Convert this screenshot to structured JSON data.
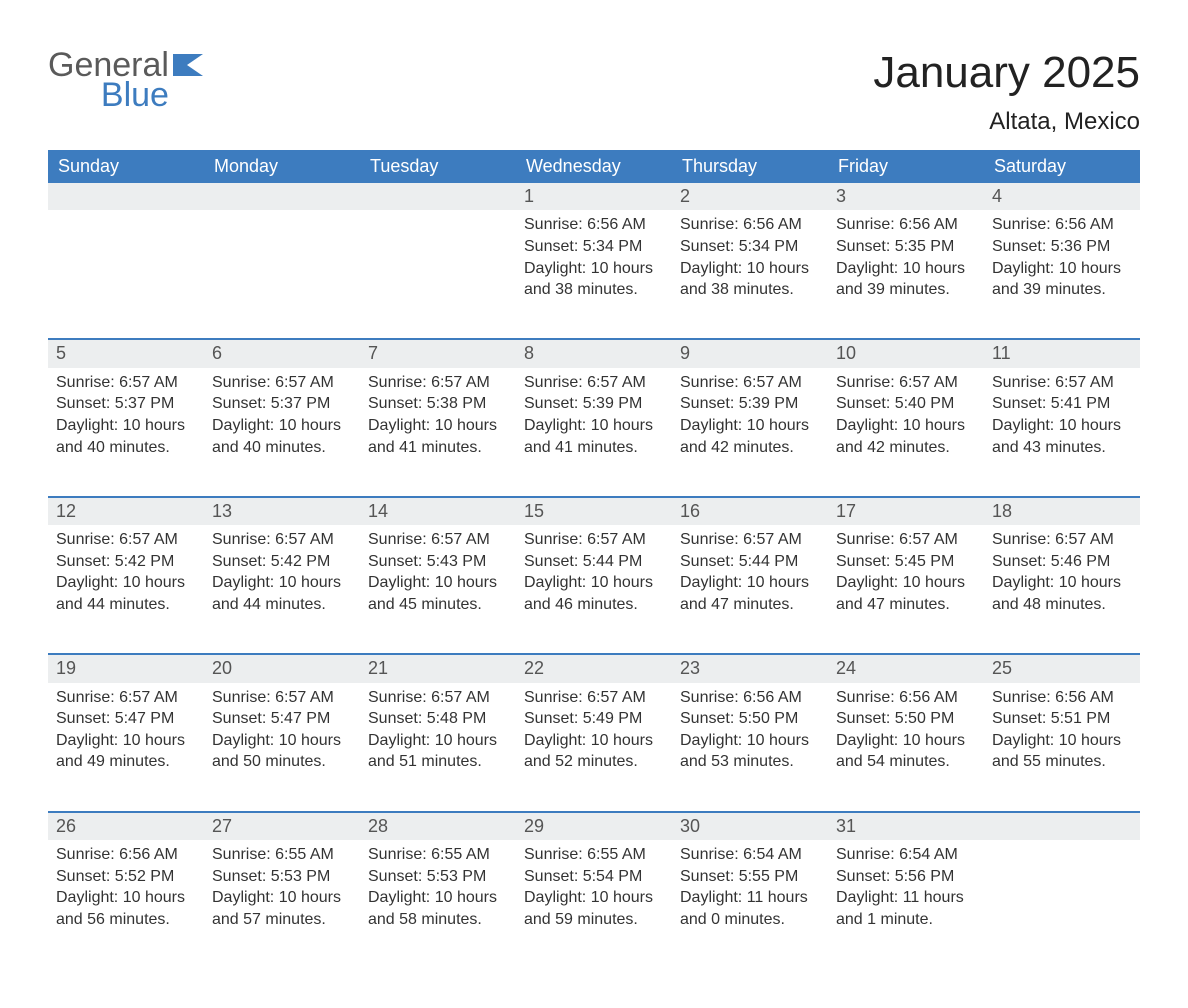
{
  "brand": {
    "word1": "General",
    "word2": "Blue"
  },
  "title": "January 2025",
  "location": "Altata, Mexico",
  "columns": [
    "Sunday",
    "Monday",
    "Tuesday",
    "Wednesday",
    "Thursday",
    "Friday",
    "Saturday"
  ],
  "colors": {
    "header_bg": "#3d7cbf",
    "header_text": "#ffffff",
    "rule": "#3d7cbf",
    "row_alt": "#eceeef",
    "text": "#333333",
    "logo_gray": "#5a5a5a",
    "logo_blue": "#3d7cbf",
    "background": "#ffffff"
  },
  "typography": {
    "title_fontsize": 44,
    "location_fontsize": 24,
    "header_fontsize": 18,
    "daynum_fontsize": 18,
    "body_fontsize": 16,
    "font_family": "Arial"
  },
  "weeks": [
    [
      null,
      null,
      null,
      {
        "n": "1",
        "sunrise": "Sunrise: 6:56 AM",
        "sunset": "Sunset: 5:34 PM",
        "dl1": "Daylight: 10 hours",
        "dl2": "and 38 minutes."
      },
      {
        "n": "2",
        "sunrise": "Sunrise: 6:56 AM",
        "sunset": "Sunset: 5:34 PM",
        "dl1": "Daylight: 10 hours",
        "dl2": "and 38 minutes."
      },
      {
        "n": "3",
        "sunrise": "Sunrise: 6:56 AM",
        "sunset": "Sunset: 5:35 PM",
        "dl1": "Daylight: 10 hours",
        "dl2": "and 39 minutes."
      },
      {
        "n": "4",
        "sunrise": "Sunrise: 6:56 AM",
        "sunset": "Sunset: 5:36 PM",
        "dl1": "Daylight: 10 hours",
        "dl2": "and 39 minutes."
      }
    ],
    [
      {
        "n": "5",
        "sunrise": "Sunrise: 6:57 AM",
        "sunset": "Sunset: 5:37 PM",
        "dl1": "Daylight: 10 hours",
        "dl2": "and 40 minutes."
      },
      {
        "n": "6",
        "sunrise": "Sunrise: 6:57 AM",
        "sunset": "Sunset: 5:37 PM",
        "dl1": "Daylight: 10 hours",
        "dl2": "and 40 minutes."
      },
      {
        "n": "7",
        "sunrise": "Sunrise: 6:57 AM",
        "sunset": "Sunset: 5:38 PM",
        "dl1": "Daylight: 10 hours",
        "dl2": "and 41 minutes."
      },
      {
        "n": "8",
        "sunrise": "Sunrise: 6:57 AM",
        "sunset": "Sunset: 5:39 PM",
        "dl1": "Daylight: 10 hours",
        "dl2": "and 41 minutes."
      },
      {
        "n": "9",
        "sunrise": "Sunrise: 6:57 AM",
        "sunset": "Sunset: 5:39 PM",
        "dl1": "Daylight: 10 hours",
        "dl2": "and 42 minutes."
      },
      {
        "n": "10",
        "sunrise": "Sunrise: 6:57 AM",
        "sunset": "Sunset: 5:40 PM",
        "dl1": "Daylight: 10 hours",
        "dl2": "and 42 minutes."
      },
      {
        "n": "11",
        "sunrise": "Sunrise: 6:57 AM",
        "sunset": "Sunset: 5:41 PM",
        "dl1": "Daylight: 10 hours",
        "dl2": "and 43 minutes."
      }
    ],
    [
      {
        "n": "12",
        "sunrise": "Sunrise: 6:57 AM",
        "sunset": "Sunset: 5:42 PM",
        "dl1": "Daylight: 10 hours",
        "dl2": "and 44 minutes."
      },
      {
        "n": "13",
        "sunrise": "Sunrise: 6:57 AM",
        "sunset": "Sunset: 5:42 PM",
        "dl1": "Daylight: 10 hours",
        "dl2": "and 44 minutes."
      },
      {
        "n": "14",
        "sunrise": "Sunrise: 6:57 AM",
        "sunset": "Sunset: 5:43 PM",
        "dl1": "Daylight: 10 hours",
        "dl2": "and 45 minutes."
      },
      {
        "n": "15",
        "sunrise": "Sunrise: 6:57 AM",
        "sunset": "Sunset: 5:44 PM",
        "dl1": "Daylight: 10 hours",
        "dl2": "and 46 minutes."
      },
      {
        "n": "16",
        "sunrise": "Sunrise: 6:57 AM",
        "sunset": "Sunset: 5:44 PM",
        "dl1": "Daylight: 10 hours",
        "dl2": "and 47 minutes."
      },
      {
        "n": "17",
        "sunrise": "Sunrise: 6:57 AM",
        "sunset": "Sunset: 5:45 PM",
        "dl1": "Daylight: 10 hours",
        "dl2": "and 47 minutes."
      },
      {
        "n": "18",
        "sunrise": "Sunrise: 6:57 AM",
        "sunset": "Sunset: 5:46 PM",
        "dl1": "Daylight: 10 hours",
        "dl2": "and 48 minutes."
      }
    ],
    [
      {
        "n": "19",
        "sunrise": "Sunrise: 6:57 AM",
        "sunset": "Sunset: 5:47 PM",
        "dl1": "Daylight: 10 hours",
        "dl2": "and 49 minutes."
      },
      {
        "n": "20",
        "sunrise": "Sunrise: 6:57 AM",
        "sunset": "Sunset: 5:47 PM",
        "dl1": "Daylight: 10 hours",
        "dl2": "and 50 minutes."
      },
      {
        "n": "21",
        "sunrise": "Sunrise: 6:57 AM",
        "sunset": "Sunset: 5:48 PM",
        "dl1": "Daylight: 10 hours",
        "dl2": "and 51 minutes."
      },
      {
        "n": "22",
        "sunrise": "Sunrise: 6:57 AM",
        "sunset": "Sunset: 5:49 PM",
        "dl1": "Daylight: 10 hours",
        "dl2": "and 52 minutes."
      },
      {
        "n": "23",
        "sunrise": "Sunrise: 6:56 AM",
        "sunset": "Sunset: 5:50 PM",
        "dl1": "Daylight: 10 hours",
        "dl2": "and 53 minutes."
      },
      {
        "n": "24",
        "sunrise": "Sunrise: 6:56 AM",
        "sunset": "Sunset: 5:50 PM",
        "dl1": "Daylight: 10 hours",
        "dl2": "and 54 minutes."
      },
      {
        "n": "25",
        "sunrise": "Sunrise: 6:56 AM",
        "sunset": "Sunset: 5:51 PM",
        "dl1": "Daylight: 10 hours",
        "dl2": "and 55 minutes."
      }
    ],
    [
      {
        "n": "26",
        "sunrise": "Sunrise: 6:56 AM",
        "sunset": "Sunset: 5:52 PM",
        "dl1": "Daylight: 10 hours",
        "dl2": "and 56 minutes."
      },
      {
        "n": "27",
        "sunrise": "Sunrise: 6:55 AM",
        "sunset": "Sunset: 5:53 PM",
        "dl1": "Daylight: 10 hours",
        "dl2": "and 57 minutes."
      },
      {
        "n": "28",
        "sunrise": "Sunrise: 6:55 AM",
        "sunset": "Sunset: 5:53 PM",
        "dl1": "Daylight: 10 hours",
        "dl2": "and 58 minutes."
      },
      {
        "n": "29",
        "sunrise": "Sunrise: 6:55 AM",
        "sunset": "Sunset: 5:54 PM",
        "dl1": "Daylight: 10 hours",
        "dl2": "and 59 minutes."
      },
      {
        "n": "30",
        "sunrise": "Sunrise: 6:54 AM",
        "sunset": "Sunset: 5:55 PM",
        "dl1": "Daylight: 11 hours",
        "dl2": "and 0 minutes."
      },
      {
        "n": "31",
        "sunrise": "Sunrise: 6:54 AM",
        "sunset": "Sunset: 5:56 PM",
        "dl1": "Daylight: 11 hours",
        "dl2": "and 1 minute."
      },
      null
    ]
  ]
}
